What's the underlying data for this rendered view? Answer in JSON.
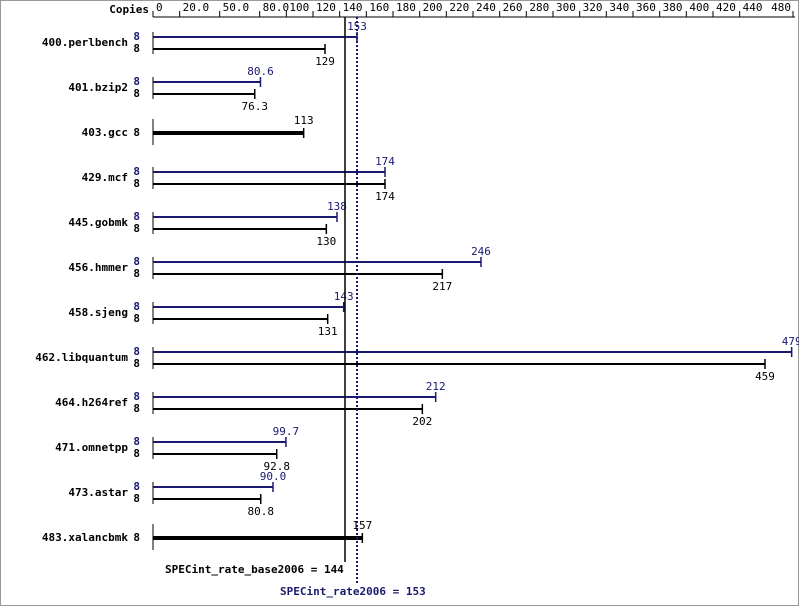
{
  "chart_data": {
    "type": "bar",
    "orientation": "horizontal",
    "copies_label": "Copies",
    "categories": [
      "400.perlbench",
      "401.bzip2",
      "403.gcc",
      "429.mcf",
      "445.gobmk",
      "456.hmmer",
      "458.sjeng",
      "462.libquantum",
      "464.h264ref",
      "471.omnetpp",
      "473.astar",
      "483.xalancbmk"
    ],
    "series": [
      {
        "name": "peak",
        "color": "#191970",
        "copies": [
          8,
          8,
          null,
          8,
          8,
          8,
          8,
          8,
          8,
          8,
          8,
          null
        ],
        "values": [
          153,
          80.6,
          null,
          174,
          138,
          246,
          143,
          479,
          212,
          99.7,
          90,
          null
        ],
        "value_labels": [
          "153",
          "80.6",
          null,
          "174",
          "138",
          "246",
          "143",
          "479",
          "212",
          "99.7",
          "90.0",
          null
        ]
      },
      {
        "name": "base",
        "color": "#000000",
        "copies": [
          8,
          8,
          8,
          8,
          8,
          8,
          8,
          8,
          8,
          8,
          8,
          8
        ],
        "values": [
          129,
          76.3,
          113,
          174,
          130,
          217,
          131,
          459,
          202,
          92.8,
          80.8,
          157
        ],
        "value_labels": [
          "129",
          "76.3",
          "113",
          "174",
          "130",
          "217",
          "131",
          "459",
          "202",
          "92.8",
          "80.8",
          "157"
        ]
      }
    ],
    "xlim": [
      0,
      480
    ],
    "xticks": [
      0,
      {
        "value": 20,
        "label": "20.0"
      },
      {
        "value": 50,
        "label": "50.0"
      },
      {
        "value": 80,
        "label": "80.0"
      },
      100,
      120,
      140,
      160,
      180,
      200,
      220,
      240,
      260,
      280,
      300,
      320,
      340,
      360,
      380,
      400,
      420,
      440,
      480
    ],
    "reference_lines": [
      {
        "label": "SPECint_rate_base2006 = 144",
        "value": 144,
        "color": "#000000",
        "style": "solid"
      },
      {
        "label": "SPECint_rate2006 = 153",
        "value": 153,
        "color": "#191970",
        "style": "dotted"
      }
    ]
  }
}
